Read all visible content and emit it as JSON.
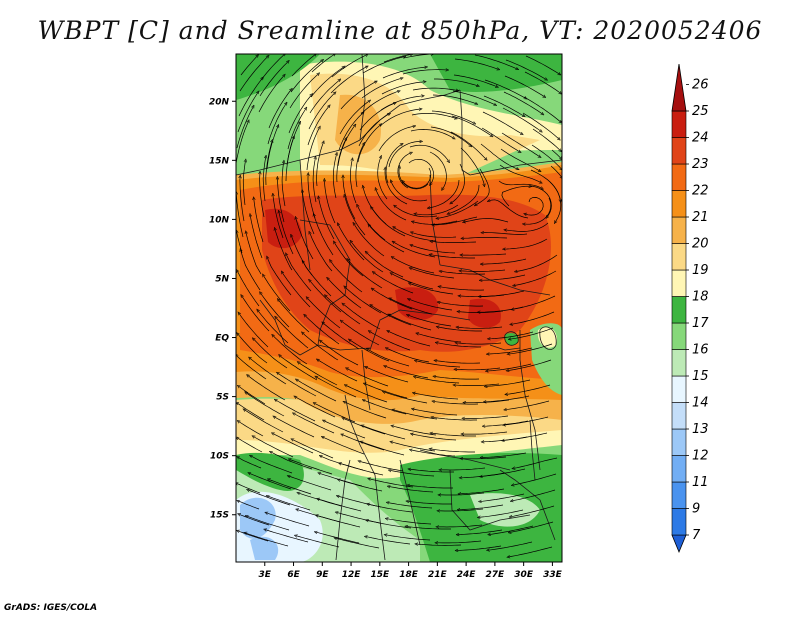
{
  "title": "WBPT [C] and Sreamline at 850hPa, VT: 2020052406",
  "credit": "GrADS: IGES/COLA",
  "map": {
    "variable": "Wet-bulb potential temperature (WBPT) with streamlines",
    "level": "850hPa",
    "valid_time": "2020052406",
    "lon_range": [
      0,
      34
    ],
    "lat_range": [
      -19,
      24
    ],
    "lat_ticks": [
      {
        "value": 20,
        "label": "20N"
      },
      {
        "value": 15,
        "label": "15N"
      },
      {
        "value": 10,
        "label": "10N"
      },
      {
        "value": 5,
        "label": "5N"
      },
      {
        "value": 0,
        "label": "EQ"
      },
      {
        "value": -5,
        "label": "5S"
      },
      {
        "value": -10,
        "label": "10S"
      },
      {
        "value": -15,
        "label": "15S"
      }
    ],
    "lon_ticks": [
      {
        "value": 3,
        "label": "3E"
      },
      {
        "value": 6,
        "label": "6E"
      },
      {
        "value": 9,
        "label": "9E"
      },
      {
        "value": 12,
        "label": "12E"
      },
      {
        "value": 15,
        "label": "15E"
      },
      {
        "value": 18,
        "label": "18E"
      },
      {
        "value": 21,
        "label": "21E"
      },
      {
        "value": 24,
        "label": "24E"
      },
      {
        "value": 27,
        "label": "27E"
      },
      {
        "value": 30,
        "label": "30E"
      },
      {
        "value": 33,
        "label": "33E"
      }
    ]
  },
  "colorbar": {
    "labels": [
      "7",
      "9",
      "11",
      "12",
      "13",
      "14",
      "15",
      "16",
      "17",
      "18",
      "19",
      "20",
      "21",
      "22",
      "23",
      "24",
      "25",
      "26"
    ],
    "colors": [
      "#1e5fd6",
      "#2d7ae6",
      "#4a93ef",
      "#72aef4",
      "#9cc8f7",
      "#c4def9",
      "#e8f6ff",
      "#bdeab6",
      "#86d87a",
      "#3db540",
      "#fff6b5",
      "#fbd986",
      "#f6b24a",
      "#f59018",
      "#f26a14",
      "#e04418",
      "#c91e10",
      "#a50f0f"
    ]
  },
  "palette": {
    "green_dark": "#3db540",
    "green_mid": "#86d87a",
    "green_light": "#bdeab6",
    "cyan_pale": "#e8f6ff",
    "blue_light": "#9cc8f7",
    "yellow": "#fff6b5",
    "tan": "#fbd986",
    "orange_light": "#f6b24a",
    "orange": "#f59018",
    "orange_red": "#f26a14",
    "red_orange": "#e04418",
    "red": "#c91e10"
  }
}
